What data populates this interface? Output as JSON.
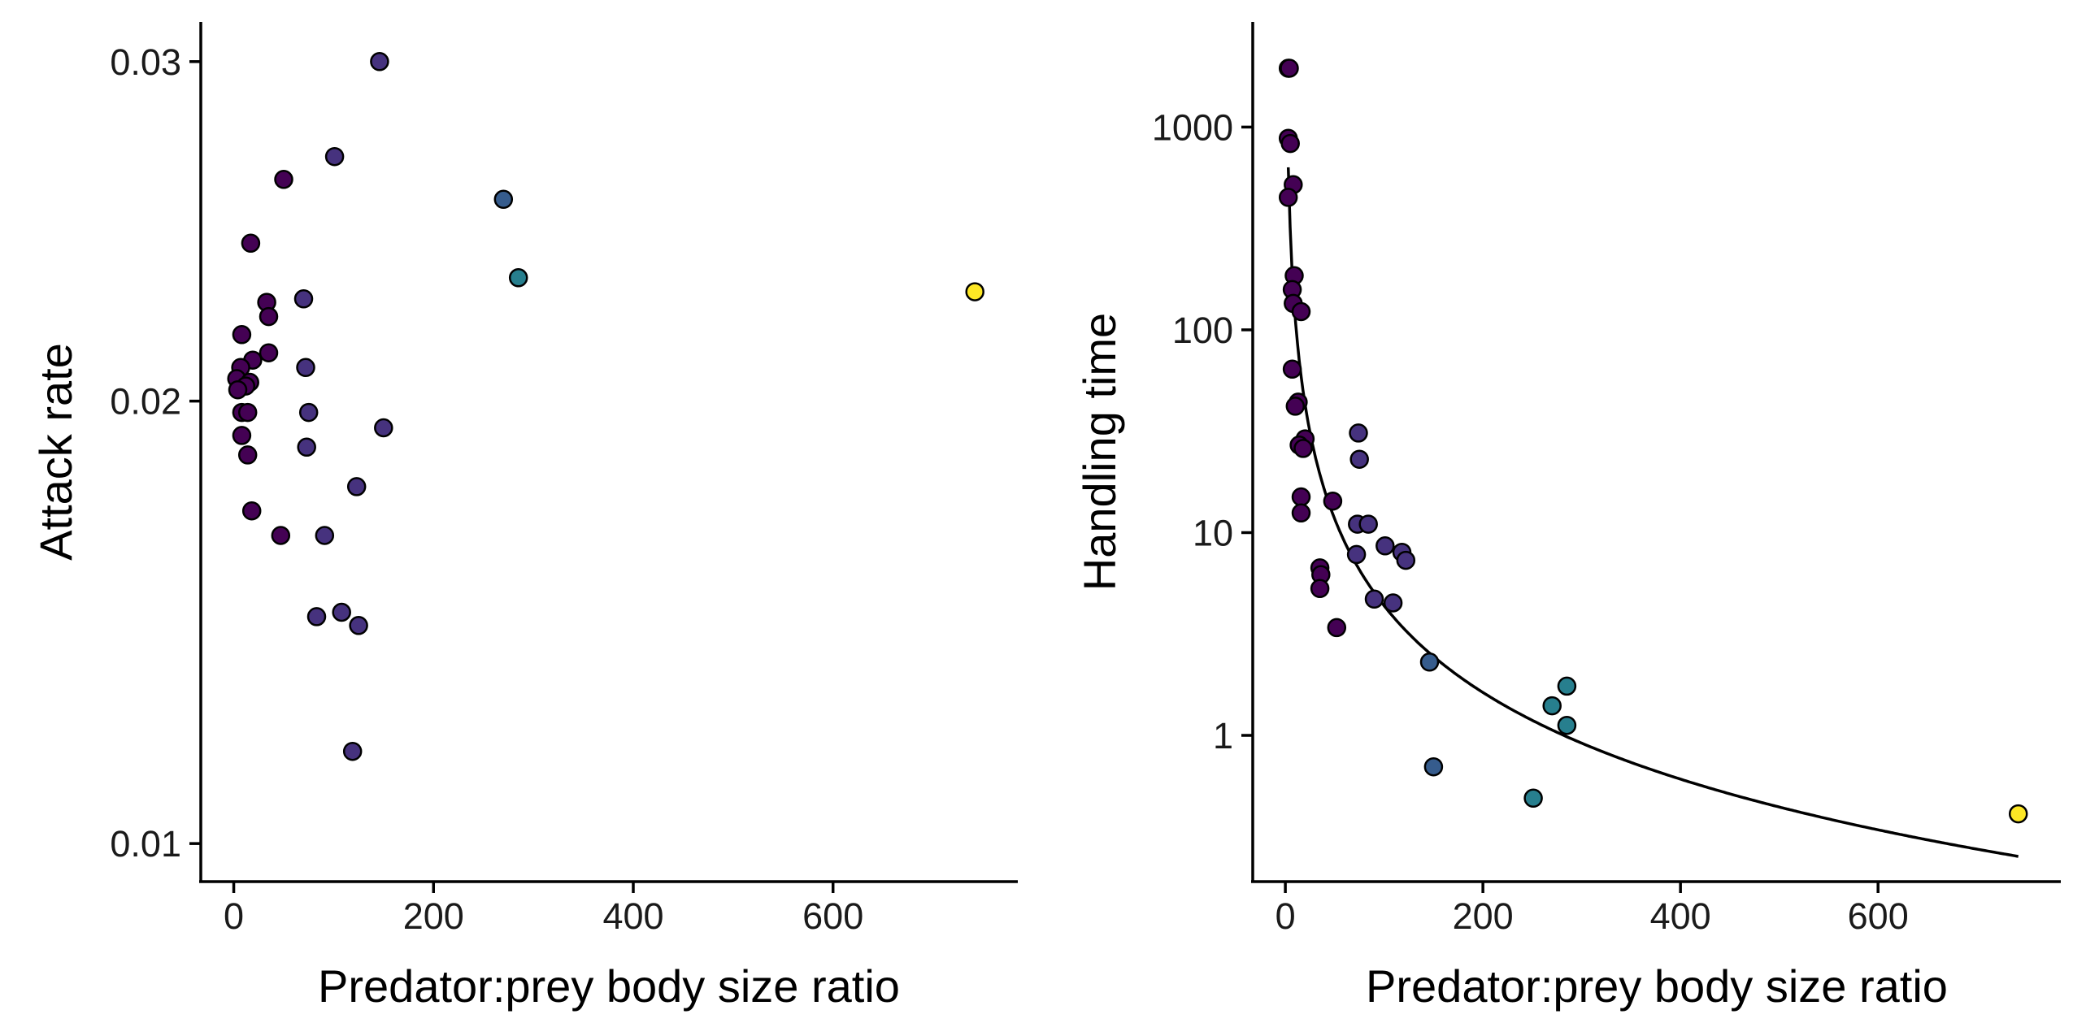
{
  "chart_data": [
    {
      "type": "scatter",
      "title": "",
      "xlabel": "Predator:prey body size ratio",
      "ylabel": "Attack rate",
      "xlim": [
        -33,
        785
      ],
      "ylim": [
        0.0093,
        0.0313
      ],
      "y_scale": "sqrt",
      "x_ticks": [
        0,
        200,
        400,
        600
      ],
      "x_tick_labels": [
        "0",
        "200",
        "400",
        "600"
      ],
      "y_ticks": [
        0.01,
        0.02,
        0.03
      ],
      "y_tick_labels": [
        "0.01",
        "0.02",
        "0.03"
      ],
      "grid": false,
      "legend": "none",
      "colors": [
        "#440154",
        "#46327e",
        "#365c8d",
        "#277f8e",
        "#fde725"
      ],
      "points": [
        {
          "x": 146,
          "y": 0.03,
          "c": 1
        },
        {
          "x": 101,
          "y": 0.027,
          "c": 1
        },
        {
          "x": 50,
          "y": 0.0263,
          "c": 0
        },
        {
          "x": 270,
          "y": 0.0257,
          "c": 2
        },
        {
          "x": 17,
          "y": 0.0244,
          "c": 0
        },
        {
          "x": 285,
          "y": 0.0234,
          "c": 3
        },
        {
          "x": 742,
          "y": 0.023,
          "c": 4
        },
        {
          "x": 70,
          "y": 0.0228,
          "c": 1
        },
        {
          "x": 33,
          "y": 0.0227,
          "c": 0
        },
        {
          "x": 35,
          "y": 0.0223,
          "c": 0
        },
        {
          "x": 8,
          "y": 0.0218,
          "c": 0
        },
        {
          "x": 35,
          "y": 0.0213,
          "c": 0
        },
        {
          "x": 19,
          "y": 0.0211,
          "c": 0
        },
        {
          "x": 72,
          "y": 0.0209,
          "c": 1
        },
        {
          "x": 7,
          "y": 0.0209,
          "c": 0
        },
        {
          "x": 3,
          "y": 0.0206,
          "c": 0
        },
        {
          "x": 16,
          "y": 0.0205,
          "c": 0
        },
        {
          "x": 12,
          "y": 0.0204,
          "c": 0
        },
        {
          "x": 4,
          "y": 0.0203,
          "c": 0
        },
        {
          "x": 8,
          "y": 0.0197,
          "c": 0
        },
        {
          "x": 14,
          "y": 0.0197,
          "c": 0
        },
        {
          "x": 75,
          "y": 0.0197,
          "c": 1
        },
        {
          "x": 150,
          "y": 0.0193,
          "c": 1
        },
        {
          "x": 8,
          "y": 0.0191,
          "c": 0
        },
        {
          "x": 73,
          "y": 0.0188,
          "c": 1
        },
        {
          "x": 14,
          "y": 0.0186,
          "c": 0
        },
        {
          "x": 123,
          "y": 0.0178,
          "c": 1
        },
        {
          "x": 18,
          "y": 0.0172,
          "c": 0
        },
        {
          "x": 47,
          "y": 0.0166,
          "c": 0
        },
        {
          "x": 91,
          "y": 0.0166,
          "c": 1
        },
        {
          "x": 108,
          "y": 0.0148,
          "c": 1
        },
        {
          "x": 83,
          "y": 0.0147,
          "c": 1
        },
        {
          "x": 125,
          "y": 0.0145,
          "c": 1
        },
        {
          "x": 119,
          "y": 0.0118,
          "c": 1
        }
      ]
    },
    {
      "type": "scatter",
      "title": "",
      "xlabel": "Predator:prey body size ratio",
      "ylabel": "Handling time",
      "xlim": [
        -33,
        785
      ],
      "ylim": [
        0.19,
        3300
      ],
      "y_scale": "log10",
      "x_ticks": [
        0,
        200,
        400,
        600
      ],
      "x_tick_labels": [
        "0",
        "200",
        "400",
        "600"
      ],
      "y_ticks": [
        1,
        10,
        100,
        1000
      ],
      "y_tick_labels": [
        "1",
        "10",
        "100",
        "1000"
      ],
      "grid": false,
      "legend": "none",
      "colors": [
        "#440154",
        "#46327e",
        "#365c8d",
        "#277f8e",
        "#fde725"
      ],
      "fit_line": {
        "form": "power",
        "coefficient": 3014,
        "exponent": -1.42,
        "x_range": [
          3,
          742
        ]
      },
      "points": [
        {
          "x": 3,
          "y": 1950,
          "c": 0
        },
        {
          "x": 4,
          "y": 1950,
          "c": 0
        },
        {
          "x": 3,
          "y": 880,
          "c": 0
        },
        {
          "x": 5,
          "y": 830,
          "c": 0
        },
        {
          "x": 8,
          "y": 520,
          "c": 0
        },
        {
          "x": 3,
          "y": 450,
          "c": 0
        },
        {
          "x": 9,
          "y": 185,
          "c": 0
        },
        {
          "x": 7,
          "y": 158,
          "c": 0
        },
        {
          "x": 8,
          "y": 135,
          "c": 0
        },
        {
          "x": 16,
          "y": 123,
          "c": 0
        },
        {
          "x": 7,
          "y": 64,
          "c": 0
        },
        {
          "x": 13,
          "y": 44,
          "c": 0
        },
        {
          "x": 10,
          "y": 42,
          "c": 0
        },
        {
          "x": 74,
          "y": 31,
          "c": 1
        },
        {
          "x": 20,
          "y": 29,
          "c": 0
        },
        {
          "x": 14,
          "y": 27,
          "c": 0
        },
        {
          "x": 18,
          "y": 26,
          "c": 0
        },
        {
          "x": 75,
          "y": 23,
          "c": 1
        },
        {
          "x": 16,
          "y": 15,
          "c": 0
        },
        {
          "x": 48,
          "y": 14.3,
          "c": 0
        },
        {
          "x": 16,
          "y": 12.5,
          "c": 0
        },
        {
          "x": 73,
          "y": 11.0,
          "c": 1
        },
        {
          "x": 84,
          "y": 11.0,
          "c": 1
        },
        {
          "x": 101,
          "y": 8.6,
          "c": 1
        },
        {
          "x": 118,
          "y": 8.0,
          "c": 1
        },
        {
          "x": 72,
          "y": 7.8,
          "c": 1
        },
        {
          "x": 122,
          "y": 7.3,
          "c": 1
        },
        {
          "x": 35,
          "y": 6.7,
          "c": 0
        },
        {
          "x": 36,
          "y": 6.2,
          "c": 0
        },
        {
          "x": 35,
          "y": 5.3,
          "c": 0
        },
        {
          "x": 90,
          "y": 4.7,
          "c": 1
        },
        {
          "x": 109,
          "y": 4.5,
          "c": 1
        },
        {
          "x": 52,
          "y": 3.4,
          "c": 0
        },
        {
          "x": 146,
          "y": 2.3,
          "c": 2
        },
        {
          "x": 285,
          "y": 1.75,
          "c": 3
        },
        {
          "x": 270,
          "y": 1.4,
          "c": 3
        },
        {
          "x": 285,
          "y": 1.12,
          "c": 3
        },
        {
          "x": 150,
          "y": 0.7,
          "c": 2
        },
        {
          "x": 251,
          "y": 0.49,
          "c": 3
        },
        {
          "x": 742,
          "y": 0.41,
          "c": 4
        }
      ]
    }
  ]
}
